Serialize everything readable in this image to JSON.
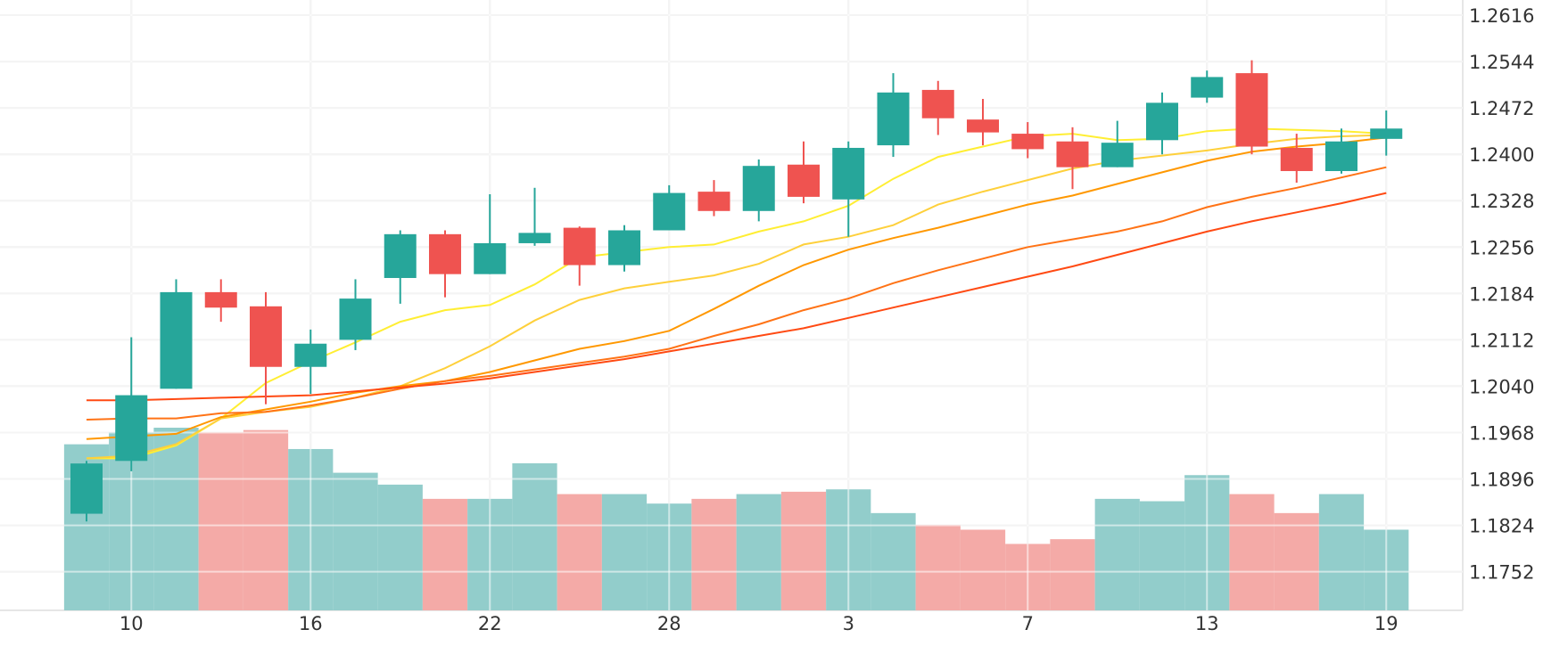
{
  "chart_data": {
    "type": "candlestick",
    "title": "",
    "xlabel": "",
    "ylabel": "",
    "y_ticks": [
      1.2616,
      1.2544,
      1.2472,
      1.24,
      1.2328,
      1.2256,
      1.2184,
      1.2112,
      1.204,
      1.1968,
      1.1896,
      1.1824,
      1.1752
    ],
    "y_range": [
      1.1692,
      1.2688
    ],
    "x_ticks": [
      {
        "label": "10",
        "index": 1
      },
      {
        "label": "16",
        "index": 5
      },
      {
        "label": "22",
        "index": 9
      },
      {
        "label": "28",
        "index": 13
      },
      {
        "label": "3",
        "index": 17
      },
      {
        "label": "7",
        "index": 21
      },
      {
        "label": "13",
        "index": 25
      },
      {
        "label": "19",
        "index": 29
      }
    ],
    "candles": [
      {
        "open": 1.1842,
        "high": 1.1924,
        "low": 1.183,
        "close": 1.192
      },
      {
        "open": 1.1924,
        "high": 1.2116,
        "low": 1.1908,
        "close": 1.2026
      },
      {
        "open": 1.2036,
        "high": 1.2206,
        "low": 1.2036,
        "close": 1.2186
      },
      {
        "open": 1.2186,
        "high": 1.2206,
        "low": 1.214,
        "close": 1.2162
      },
      {
        "open": 1.2164,
        "high": 1.2186,
        "low": 1.2012,
        "close": 1.207
      },
      {
        "open": 1.207,
        "high": 1.2128,
        "low": 1.2028,
        "close": 1.2106
      },
      {
        "open": 1.2112,
        "high": 1.2206,
        "low": 1.2096,
        "close": 1.2176
      },
      {
        "open": 1.2208,
        "high": 1.2282,
        "low": 1.2168,
        "close": 1.2276
      },
      {
        "open": 1.2276,
        "high": 1.2282,
        "low": 1.2178,
        "close": 1.2214
      },
      {
        "open": 1.2214,
        "high": 1.2338,
        "low": 1.2214,
        "close": 1.2262
      },
      {
        "open": 1.2262,
        "high": 1.2348,
        "low": 1.2258,
        "close": 1.2278
      },
      {
        "open": 1.2286,
        "high": 1.2288,
        "low": 1.2196,
        "close": 1.2228
      },
      {
        "open": 1.2228,
        "high": 1.229,
        "low": 1.2218,
        "close": 1.2282
      },
      {
        "open": 1.2282,
        "high": 1.2352,
        "low": 1.2282,
        "close": 1.234
      },
      {
        "open": 1.2342,
        "high": 1.236,
        "low": 1.2304,
        "close": 1.2312
      },
      {
        "open": 1.2312,
        "high": 1.2392,
        "low": 1.2296,
        "close": 1.2382
      },
      {
        "open": 1.2384,
        "high": 1.242,
        "low": 1.2324,
        "close": 1.2334
      },
      {
        "open": 1.233,
        "high": 1.242,
        "low": 1.2272,
        "close": 1.241
      },
      {
        "open": 1.2414,
        "high": 1.2526,
        "low": 1.2396,
        "close": 1.2496
      },
      {
        "open": 1.25,
        "high": 1.2514,
        "low": 1.243,
        "close": 1.2456
      },
      {
        "open": 1.2454,
        "high": 1.2486,
        "low": 1.2414,
        "close": 1.2434
      },
      {
        "open": 1.2432,
        "high": 1.245,
        "low": 1.2394,
        "close": 1.2408
      },
      {
        "open": 1.242,
        "high": 1.2442,
        "low": 1.2346,
        "close": 1.238
      },
      {
        "open": 1.238,
        "high": 1.2452,
        "low": 1.238,
        "close": 1.2418
      },
      {
        "open": 1.2422,
        "high": 1.2496,
        "low": 1.24,
        "close": 1.248
      },
      {
        "open": 1.2488,
        "high": 1.253,
        "low": 1.248,
        "close": 1.252
      },
      {
        "open": 1.2526,
        "high": 1.2546,
        "low": 1.24,
        "close": 1.2412
      },
      {
        "open": 1.241,
        "high": 1.2432,
        "low": 1.2356,
        "close": 1.2374
      },
      {
        "open": 1.2374,
        "high": 1.244,
        "low": 1.237,
        "close": 1.242
      },
      {
        "open": 1.2424,
        "high": 1.2468,
        "low": 1.2398,
        "close": 1.244
      }
    ],
    "volume_relative": [
      0.7,
      0.75,
      0.77,
      0.75,
      0.76,
      0.68,
      0.58,
      0.53,
      0.47,
      0.47,
      0.62,
      0.49,
      0.49,
      0.45,
      0.47,
      0.49,
      0.5,
      0.51,
      0.41,
      0.36,
      0.34,
      0.28,
      0.3,
      0.47,
      0.46,
      0.57,
      0.49,
      0.41,
      0.49,
      0.34
    ],
    "volume_direction": [
      "up",
      "up",
      "up",
      "down",
      "down",
      "up",
      "up",
      "up",
      "down",
      "up",
      "up",
      "down",
      "up",
      "up",
      "down",
      "up",
      "down",
      "up",
      "up",
      "down",
      "down",
      "down",
      "down",
      "up",
      "up",
      "up",
      "down",
      "down",
      "up",
      "up"
    ],
    "moving_averages": [
      {
        "color": "#ffee33",
        "values": [
          1.1928,
          1.1928,
          1.1948,
          1.199,
          1.2045,
          1.2078,
          1.2108,
          1.214,
          1.2158,
          1.2166,
          1.2198,
          1.224,
          1.2248,
          1.2256,
          1.226,
          1.228,
          1.2296,
          1.232,
          1.2362,
          1.2396,
          1.2412,
          1.2428,
          1.2432,
          1.2422,
          1.2424,
          1.2436,
          1.244,
          1.2438,
          1.2436,
          1.2432
        ]
      },
      {
        "color": "#fed03b",
        "values": [
          1.1928,
          1.1932,
          1.195,
          1.199,
          1.2,
          1.2008,
          1.2022,
          1.204,
          1.2068,
          1.2102,
          1.2142,
          1.2174,
          1.2192,
          1.2202,
          1.2212,
          1.223,
          1.226,
          1.2272,
          1.229,
          1.2322,
          1.2342,
          1.236,
          1.2378,
          1.239,
          1.2398,
          1.2406,
          1.2416,
          1.2424,
          1.2428,
          1.243
        ]
      },
      {
        "color": "#ff9800",
        "values": [
          1.1958,
          1.1962,
          1.1966,
          1.1992,
          1.2004,
          1.2016,
          1.203,
          1.204,
          1.2048,
          1.2062,
          1.208,
          1.2098,
          1.211,
          1.2126,
          1.216,
          1.2196,
          1.2228,
          1.2252,
          1.227,
          1.2286,
          1.2304,
          1.2322,
          1.2336,
          1.2354,
          1.2372,
          1.239,
          1.2404,
          1.2412,
          1.2418,
          1.2426
        ]
      },
      {
        "color": "#ff7316",
        "values": [
          1.1988,
          1.199,
          1.199,
          1.1998,
          1.2,
          1.201,
          1.2022,
          1.2036,
          1.2048,
          1.2056,
          1.2066,
          1.2076,
          1.2086,
          1.2098,
          1.2118,
          1.2136,
          1.2158,
          1.2176,
          1.22,
          1.222,
          1.2238,
          1.2256,
          1.2268,
          1.228,
          1.2296,
          1.2318,
          1.2334,
          1.2348,
          1.2364,
          1.238
        ]
      },
      {
        "color": "#ff4a13",
        "values": [
          1.2018,
          1.2018,
          1.202,
          1.2022,
          1.2024,
          1.2026,
          1.2032,
          1.2038,
          1.2044,
          1.2052,
          1.2062,
          1.2072,
          1.2082,
          1.2094,
          1.2106,
          1.2118,
          1.213,
          1.2146,
          1.2162,
          1.2178,
          1.2194,
          1.221,
          1.2226,
          1.2244,
          1.2262,
          1.228,
          1.2296,
          1.231,
          1.2324,
          1.234
        ]
      }
    ],
    "colors": {
      "up": "#26a69a",
      "down": "#ef5350",
      "volume_up": "#92cdcb",
      "volume_down": "#f4aaa7",
      "grid": "#e6e6e6",
      "axis_text": "#333333"
    },
    "grid": true
  }
}
